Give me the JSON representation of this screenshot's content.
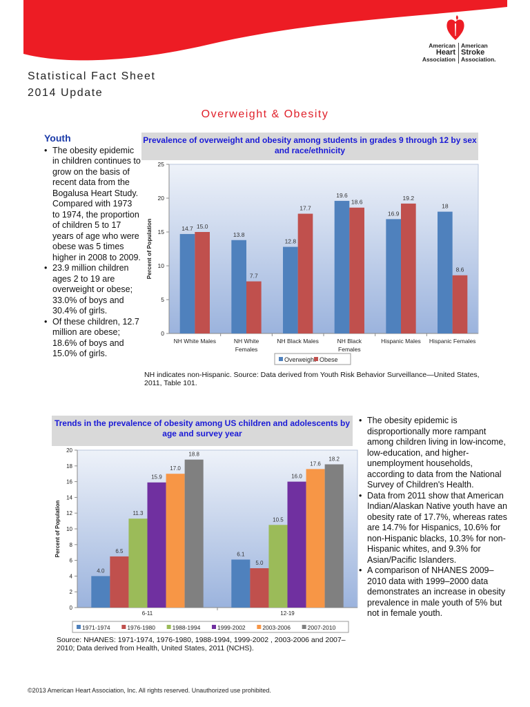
{
  "header": {
    "title_line1": "Statistical Fact Sheet",
    "title_line2": "2014 Update",
    "section_title": "Overweight & Obesity"
  },
  "logo": {
    "left": [
      "American",
      "Heart",
      "Association"
    ],
    "right": [
      "American",
      "Stroke",
      "Association."
    ]
  },
  "colors": {
    "banner": "#ed1c24",
    "heading_blue": "#1a3aa8",
    "chart_title": "#1a1ad6"
  },
  "youth": {
    "heading": "Youth",
    "bullets": [
      "The obesity epidemic in children continues to grow on the basis of recent data from the Bogalusa Heart Study. Compared with 1973 to 1974, the proportion of children 5 to 17 years of age who were obese was 5 times higher in 2008 to 2009.",
      "23.9 million children ages 2 to 19 are overweight or obese; 33.0% of boys and 30.4% of girls.",
      "Of these children, 12.7 million are obese; 18.6% of boys and 15.0% of girls."
    ]
  },
  "right_bullets": [
    "The obesity epidemic is disproportionally more rampant among children living in low-income, low-education, and higher-unemployment households, according to data from the National Survey of Children's Health.",
    "Data from 2011 show that American Indian/Alaskan Native youth have an obesity rate of 17.7%, whereas rates are 14.7% for Hispanics, 10.6% for non-Hispanic blacks, 10.3% for non-Hispanic whites, and 9.3% for Asian/Pacific Islanders.",
    "A comparison of NHANES 2009–2010 data with 1999–2000 data demonstrates an increase in obesity prevalence in male youth of 5% but not in female youth."
  ],
  "chart_data": [
    {
      "type": "bar",
      "title": "Prevalence of overweight and obesity among students in grades 9 through 12 by sex and race/ethnicity",
      "ylabel": "Percent of Population",
      "xlabel": "",
      "ylim": [
        0,
        25
      ],
      "yticks": [
        0,
        5,
        10,
        15,
        20,
        25
      ],
      "grid": false,
      "legend": "bottom",
      "categories": [
        [
          "NH White Males"
        ],
        [
          "NH White",
          "Females"
        ],
        [
          "NH Black Males"
        ],
        [
          "NH Black",
          "Females"
        ],
        [
          "Hispanic Males"
        ],
        [
          "Hispanic Females"
        ]
      ],
      "series": [
        {
          "name": "Overweight",
          "color": "#4f81bd",
          "values": [
            14.7,
            13.8,
            12.8,
            19.6,
            16.9,
            18
          ],
          "labels": [
            "14.7",
            "13.8",
            "12.8",
            "19.6",
            "16.9",
            "18"
          ]
        },
        {
          "name": "Obese",
          "color": "#c0504d",
          "values": [
            15.0,
            7.7,
            17.7,
            18.6,
            19.2,
            8.6
          ],
          "labels": [
            "15.0",
            "7.7",
            "17.7",
            "18.6",
            "19.2",
            "8.6"
          ]
        }
      ],
      "note": "NH indicates non-Hispanic.  Source: Data derived from Youth Risk Behavior Surveillance—United States, 2011, Table 101."
    },
    {
      "type": "bar",
      "title": "Trends in the prevalence of obesity among US children and adolescents by age and survey year",
      "ylabel": "Percent of Population",
      "xlabel": "",
      "ylim": [
        0,
        20
      ],
      "yticks": [
        0,
        2,
        4,
        6,
        8,
        10,
        12,
        14,
        16,
        18,
        20
      ],
      "grid": false,
      "legend": "bottom",
      "categories": [
        [
          "6-11"
        ],
        [
          "12-19"
        ]
      ],
      "series": [
        {
          "name": "1971-1974",
          "color": "#4f81bd",
          "values": [
            4.0,
            6.1
          ],
          "labels": [
            "4.0",
            "6.1"
          ]
        },
        {
          "name": "1976-1980",
          "color": "#c0504d",
          "values": [
            6.5,
            5.0
          ],
          "labels": [
            "6.5",
            "5.0"
          ]
        },
        {
          "name": "1988-1994",
          "color": "#9bbb59",
          "values": [
            11.3,
            10.5
          ],
          "labels": [
            "11.3",
            "10.5"
          ]
        },
        {
          "name": "1999-2002",
          "color": "#7030a0",
          "values": [
            15.9,
            16.0
          ],
          "labels": [
            "15.9",
            "16.0"
          ]
        },
        {
          "name": "2003-2006",
          "color": "#f79646",
          "values": [
            17.0,
            17.6
          ],
          "labels": [
            "17.0",
            "17.6"
          ]
        },
        {
          "name": "2007-2010",
          "color": "#808080",
          "values": [
            18.8,
            18.2
          ],
          "labels": [
            "18.8",
            "18.2"
          ]
        }
      ],
      "note": "Source: NHANES: 1971-1974, 1976-1980, 1988-1994, 1999-2002 , 2003-2006 and 2007–2010; Data derived from Health, United States, 2011 (NCHS)."
    }
  ],
  "footer": "©2013 American Heart Association, Inc. All rights reserved. Unauthorized use prohibited."
}
